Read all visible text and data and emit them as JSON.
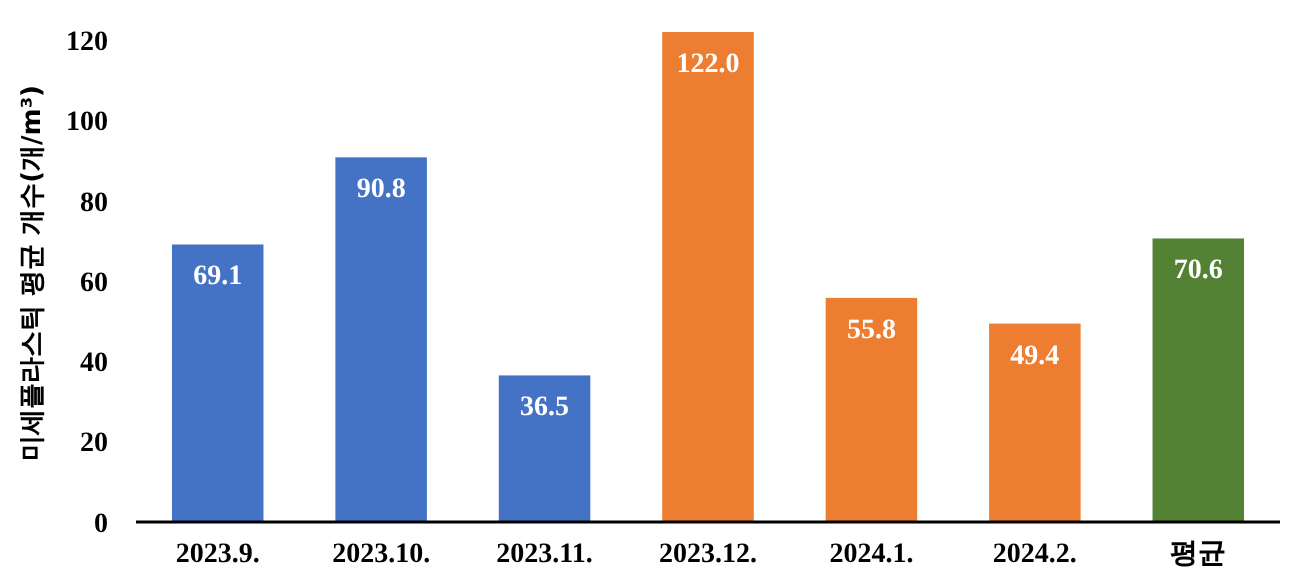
{
  "chart_data": {
    "type": "bar",
    "ylabel": "미세플라스틱 평균 개수(개/m³)",
    "categories": [
      "2023.9.",
      "2023.10.",
      "2023.11.",
      "2023.12.",
      "2024.1.",
      "2024.2.",
      "평균"
    ],
    "values": [
      69.1,
      90.8,
      36.5,
      122.0,
      55.8,
      49.4,
      70.6
    ],
    "colors": [
      "#4472c4",
      "#4472c4",
      "#4472c4",
      "#ed7d31",
      "#ed7d31",
      "#ed7d31",
      "#548235"
    ],
    "value_labels": [
      "69.1",
      "90.8",
      "36.5",
      "122.0",
      "55.8",
      "49.4",
      "70.6"
    ],
    "ylim": [
      0,
      124
    ],
    "yticks": [
      0,
      20,
      40,
      60,
      80,
      100,
      120
    ],
    "grid": false
  }
}
